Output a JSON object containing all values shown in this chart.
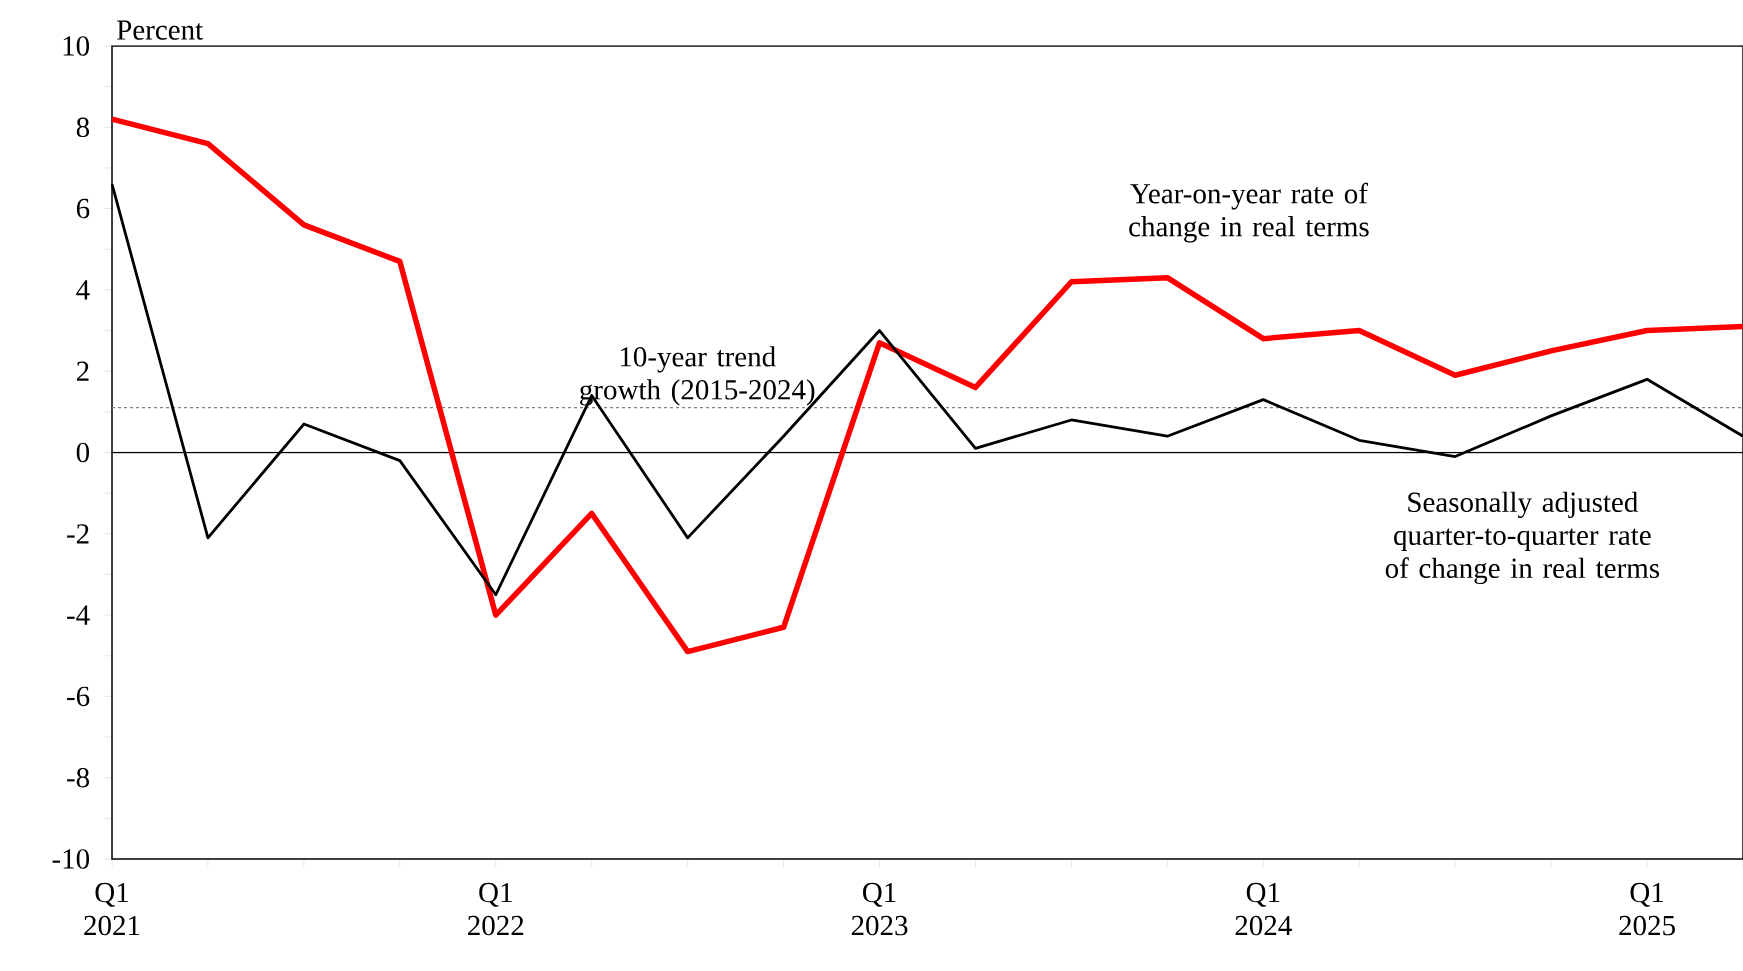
{
  "chart_data": {
    "type": "line",
    "ylabel": "Percent",
    "categories": [
      "Q1 2021",
      null,
      null,
      null,
      "Q1 2022",
      null,
      null,
      null,
      "Q1 2023",
      null,
      null,
      null,
      "Q1 2024",
      null,
      null,
      null,
      "Q1 2025",
      null
    ],
    "series": [
      {
        "name": "Year-on-year rate of change in real terms",
        "color": "#ff0000",
        "values": [
          8.2,
          7.6,
          5.6,
          4.7,
          -4.0,
          -1.5,
          -4.9,
          -4.3,
          2.7,
          1.6,
          4.2,
          4.3,
          2.8,
          3.0,
          1.9,
          2.5,
          3.0,
          3.1
        ]
      },
      {
        "name": "Seasonally adjusted quarter-to-quarter rate of change in real terms",
        "color": "#000000",
        "values": [
          6.6,
          -2.1,
          0.7,
          -0.2,
          -3.5,
          1.4,
          -2.1,
          0.4,
          3.0,
          0.1,
          0.8,
          0.4,
          1.3,
          0.3,
          -0.1,
          0.9,
          1.8,
          0.4
        ]
      }
    ],
    "ylim": [
      -10,
      10
    ],
    "yticks": [
      -10,
      {
        "value": -9,
        "label": null
      },
      -8,
      {
        "value": -7,
        "label": null
      },
      -6,
      {
        "value": -5,
        "label": null
      },
      -4,
      {
        "value": -3,
        "label": null
      },
      -2,
      {
        "value": -1,
        "label": null
      },
      0,
      {
        "value": 1,
        "label": null
      },
      2,
      {
        "value": 3,
        "label": null
      },
      4,
      {
        "value": 5,
        "label": null
      },
      6,
      {
        "value": 7,
        "label": null
      },
      8,
      {
        "value": 9,
        "label": null
      },
      10
    ],
    "ref_lines": [
      {
        "axis": "y",
        "value": 0,
        "color": "#000000",
        "line_style": "solid"
      },
      {
        "axis": "y",
        "value": 1.1,
        "label": "10-year trend growth (2015-2024)",
        "color": "#808080",
        "line_style": "dashed"
      }
    ],
    "grid": false,
    "marker": "none",
    "line_style": "solid"
  }
}
